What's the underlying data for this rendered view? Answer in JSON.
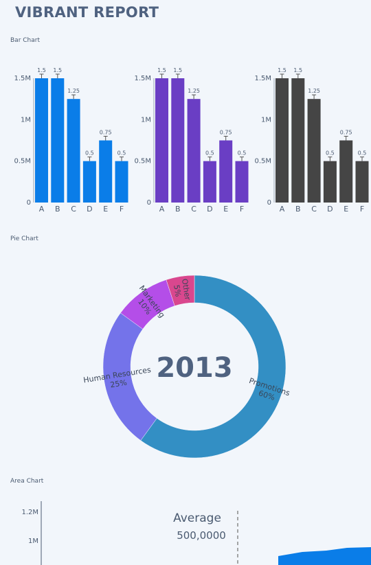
{
  "page": {
    "title": "VIBRANT REPORT",
    "bar_section_label": "Bar Chart",
    "pie_section_label": "Pie Chart",
    "area_section_label": "Area Chart"
  },
  "chart_data": [
    {
      "type": "bar",
      "categories": [
        "A",
        "B",
        "C",
        "D",
        "E",
        "F"
      ],
      "values": [
        1.5,
        1.5,
        1.25,
        0.5,
        0.75,
        0.5
      ],
      "data_labels": [
        "1.5",
        "1.5",
        "1.25",
        "0.5",
        "0.75",
        "0.5"
      ],
      "error": 0.05,
      "yticks": [
        "0",
        "0.5M",
        "1M",
        "1.5M"
      ],
      "ylim": [
        0,
        1.5
      ],
      "color": "#0a7de8"
    },
    {
      "type": "bar",
      "categories": [
        "A",
        "B",
        "C",
        "D",
        "E",
        "F"
      ],
      "values": [
        1.5,
        1.5,
        1.25,
        0.5,
        0.75,
        0.5
      ],
      "data_labels": [
        "1.5",
        "1.5",
        "1.25",
        "0.5",
        "0.75",
        "0.5"
      ],
      "error": 0.05,
      "yticks": [
        "0",
        "0.5M",
        "1M",
        "1.5M"
      ],
      "ylim": [
        0,
        1.5
      ],
      "color": "#6a3ec4"
    },
    {
      "type": "bar",
      "categories": [
        "A",
        "B",
        "C",
        "D",
        "E",
        "F"
      ],
      "values": [
        1.5,
        1.5,
        1.25,
        0.5,
        0.75,
        0.5
      ],
      "data_labels": [
        "1.5",
        "1.5",
        "1.25",
        "0.5",
        "0.75",
        "0.5"
      ],
      "error": 0.05,
      "yticks": [
        "0",
        "0.5M",
        "1M",
        "1.5M"
      ],
      "ylim": [
        0,
        1.5
      ],
      "color": "#454545"
    },
    {
      "type": "pie",
      "center_label": "2013",
      "slices": [
        {
          "name": "Promotions",
          "percent": "60%",
          "value": 60,
          "color": "#338fc4"
        },
        {
          "name": "Human Resources",
          "percent": "25%",
          "value": 25,
          "color": "#7473ea"
        },
        {
          "name": "Marketing",
          "percent": "10%",
          "value": 10,
          "color": "#b44ee8"
        },
        {
          "name": "Other",
          "percent": "5%",
          "value": 5,
          "color": "#d9478e"
        }
      ]
    },
    {
      "type": "area",
      "yticks": [
        "1M",
        "1.2M"
      ],
      "annotation_title": "Average",
      "annotation_value": "500,0000",
      "color": "#0a7de8"
    }
  ]
}
